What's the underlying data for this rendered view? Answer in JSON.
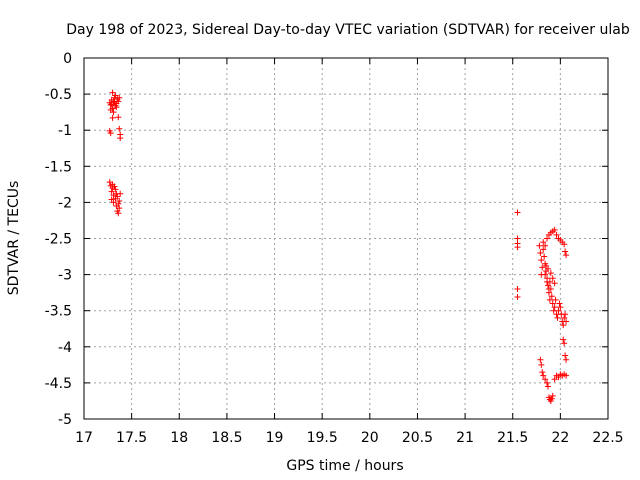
{
  "chart_data": {
    "type": "scatter",
    "title": "Day 198 of 2023, Sidereal Day-to-day VTEC variation (SDTVAR) for receiver ulab",
    "xlabel": "GPS time / hours",
    "ylabel": "SDTVAR / TECUs",
    "xlim": [
      17,
      22.5
    ],
    "ylim": [
      -5,
      0
    ],
    "xticks": [
      "17",
      "17.5",
      "18",
      "18.5",
      "19",
      "19.5",
      "20",
      "20.5",
      "21",
      "21.5",
      "22",
      "22.5"
    ],
    "yticks": [
      "0",
      "-0.5",
      "-1",
      "-1.5",
      "-2",
      "-2.5",
      "-3",
      "-3.5",
      "-4",
      "-4.5",
      "-5"
    ],
    "grid": true,
    "marker": "+",
    "color": "#ff0000",
    "series": [
      {
        "name": "SDTVAR",
        "points": [
          [
            17.27,
            -0.62
          ],
          [
            17.28,
            -0.65
          ],
          [
            17.29,
            -0.58
          ],
          [
            17.3,
            -0.7
          ],
          [
            17.31,
            -0.6
          ],
          [
            17.32,
            -0.55
          ],
          [
            17.33,
            -0.66
          ],
          [
            17.34,
            -0.63
          ],
          [
            17.35,
            -0.57
          ],
          [
            17.3,
            -0.48
          ],
          [
            17.28,
            -0.72
          ],
          [
            17.31,
            -0.75
          ],
          [
            17.33,
            -0.52
          ],
          [
            17.36,
            -0.6
          ],
          [
            17.37,
            -0.55
          ],
          [
            17.29,
            -0.64
          ],
          [
            17.34,
            -0.68
          ],
          [
            17.32,
            -0.61
          ],
          [
            17.3,
            -0.83
          ],
          [
            17.36,
            -0.82
          ],
          [
            17.27,
            -1.01
          ],
          [
            17.28,
            -1.04
          ],
          [
            17.37,
            -0.98
          ],
          [
            17.38,
            -1.06
          ],
          [
            17.38,
            -1.11
          ],
          [
            17.27,
            -1.72
          ],
          [
            17.28,
            -1.77
          ],
          [
            17.29,
            -1.85
          ],
          [
            17.3,
            -1.8
          ],
          [
            17.31,
            -1.9
          ],
          [
            17.32,
            -1.78
          ],
          [
            17.33,
            -1.95
          ],
          [
            17.34,
            -1.88
          ],
          [
            17.35,
            -1.92
          ],
          [
            17.36,
            -2.02
          ],
          [
            17.37,
            -1.98
          ],
          [
            17.38,
            -1.88
          ],
          [
            17.35,
            -2.12
          ],
          [
            17.36,
            -2.15
          ],
          [
            17.37,
            -2.08
          ],
          [
            17.29,
            -1.96
          ],
          [
            17.31,
            -2.0
          ],
          [
            17.33,
            -1.82
          ],
          [
            17.34,
            -2.05
          ],
          [
            17.3,
            -1.75
          ],
          [
            21.55,
            -2.14
          ],
          [
            21.55,
            -2.5
          ],
          [
            21.55,
            -2.57
          ],
          [
            21.55,
            -2.62
          ],
          [
            21.55,
            -3.2
          ],
          [
            21.55,
            -3.31
          ],
          [
            21.78,
            -2.6
          ],
          [
            21.79,
            -2.7
          ],
          [
            21.8,
            -2.8
          ],
          [
            21.81,
            -2.9
          ],
          [
            21.8,
            -3.0
          ],
          [
            21.82,
            -2.65
          ],
          [
            21.83,
            -2.75
          ],
          [
            21.84,
            -2.85
          ],
          [
            21.85,
            -2.95
          ],
          [
            21.86,
            -3.05
          ],
          [
            21.87,
            -3.15
          ],
          [
            21.88,
            -3.25
          ],
          [
            21.89,
            -3.1
          ],
          [
            21.9,
            -3.2
          ],
          [
            21.91,
            -3.3
          ],
          [
            21.92,
            -3.4
          ],
          [
            21.93,
            -3.5
          ],
          [
            21.94,
            -3.45
          ],
          [
            21.95,
            -3.35
          ],
          [
            21.96,
            -3.55
          ],
          [
            21.97,
            -3.6
          ],
          [
            21.98,
            -3.5
          ],
          [
            21.99,
            -3.4
          ],
          [
            22.0,
            -3.45
          ],
          [
            22.01,
            -3.55
          ],
          [
            22.02,
            -3.65
          ],
          [
            22.03,
            -3.7
          ],
          [
            22.04,
            -3.6
          ],
          [
            22.05,
            -3.55
          ],
          [
            22.06,
            -3.65
          ],
          [
            21.82,
            -2.55
          ],
          [
            21.84,
            -2.6
          ],
          [
            21.86,
            -2.5
          ],
          [
            21.88,
            -2.45
          ],
          [
            21.9,
            -2.42
          ],
          [
            21.92,
            -2.4
          ],
          [
            21.94,
            -2.38
          ],
          [
            21.96,
            -2.45
          ],
          [
            21.98,
            -2.5
          ],
          [
            22.0,
            -2.52
          ],
          [
            22.02,
            -2.55
          ],
          [
            22.04,
            -2.58
          ],
          [
            22.05,
            -2.68
          ],
          [
            22.06,
            -2.73
          ],
          [
            21.84,
            -3.0
          ],
          [
            21.86,
            -3.1
          ],
          [
            21.88,
            -3.2
          ],
          [
            21.9,
            -2.98
          ],
          [
            21.92,
            -3.05
          ],
          [
            21.94,
            -3.12
          ],
          [
            21.85,
            -2.88
          ],
          [
            21.87,
            -2.92
          ],
          [
            21.89,
            -3.35
          ],
          [
            22.03,
            -3.9
          ],
          [
            22.04,
            -3.95
          ],
          [
            22.05,
            -4.12
          ],
          [
            22.06,
            -4.18
          ],
          [
            21.79,
            -4.18
          ],
          [
            21.8,
            -4.25
          ],
          [
            21.81,
            -4.35
          ],
          [
            21.82,
            -4.4
          ],
          [
            21.84,
            -4.45
          ],
          [
            21.86,
            -4.5
          ],
          [
            21.87,
            -4.55
          ],
          [
            21.88,
            -4.7
          ],
          [
            21.89,
            -4.73
          ],
          [
            21.9,
            -4.75
          ],
          [
            21.91,
            -4.72
          ],
          [
            21.92,
            -4.68
          ],
          [
            21.94,
            -4.45
          ],
          [
            21.96,
            -4.4
          ],
          [
            21.98,
            -4.42
          ],
          [
            22.0,
            -4.38
          ],
          [
            22.02,
            -4.4
          ],
          [
            22.04,
            -4.38
          ],
          [
            22.06,
            -4.4
          ]
        ]
      }
    ]
  }
}
